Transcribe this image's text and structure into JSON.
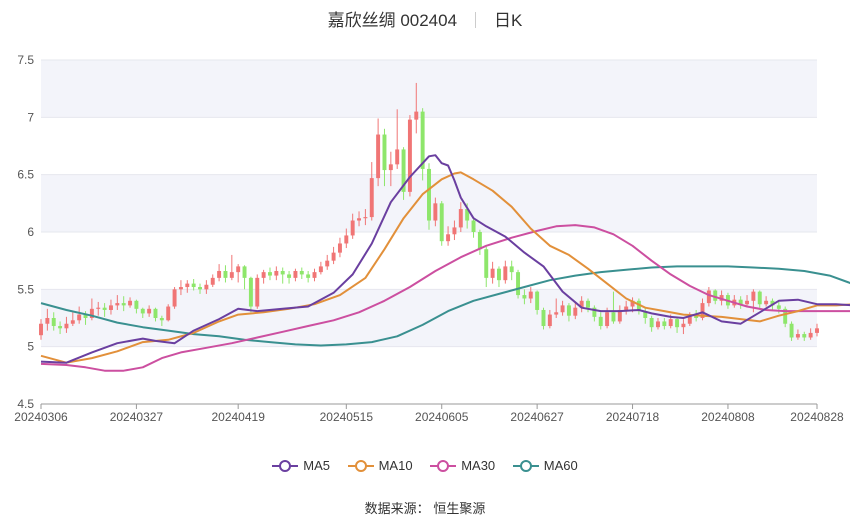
{
  "header": {
    "stock": "嘉欣丝绸 002404",
    "period": "日K"
  },
  "source_label": "数据来源：",
  "source_value": "恒生聚源",
  "colors": {
    "up": "#f07575",
    "down": "#8ee66b",
    "ma5": "#6a3fa0",
    "ma10": "#e2903a",
    "ma30": "#cc4fa0",
    "ma60": "#3a9090"
  },
  "chart_data": {
    "type": "candlestick",
    "title": "嘉欣丝绸 002404 日K",
    "ylim": [
      4.5,
      7.5
    ],
    "yticks": [
      "4.5",
      "5",
      "5.5",
      "6",
      "6.5",
      "7",
      "7.5"
    ],
    "x_start": "20240306",
    "x_end": "20240828",
    "xticks": [
      "20240306",
      "20240327",
      "20240419",
      "20240515",
      "20240605",
      "20240627",
      "20240718",
      "20240808",
      "20240828"
    ],
    "xtick_index": [
      0,
      15,
      31,
      48,
      63,
      78,
      93,
      108,
      122
    ],
    "n_days": 123,
    "legend": [
      "MA5",
      "MA10",
      "MA30",
      "MA60"
    ],
    "candles": [
      [
        5.1,
        5.2,
        5.24,
        5.06
      ],
      [
        5.2,
        5.25,
        5.33,
        5.14
      ],
      [
        5.25,
        5.18,
        5.3,
        5.14
      ],
      [
        5.18,
        5.16,
        5.22,
        5.11
      ],
      [
        5.16,
        5.2,
        5.26,
        5.12
      ],
      [
        5.2,
        5.23,
        5.3,
        5.18
      ],
      [
        5.23,
        5.28,
        5.35,
        5.2
      ],
      [
        5.28,
        5.25,
        5.31,
        5.19
      ],
      [
        5.25,
        5.33,
        5.42,
        5.23
      ],
      [
        5.33,
        5.34,
        5.39,
        5.27
      ],
      [
        5.34,
        5.32,
        5.38,
        5.26
      ],
      [
        5.32,
        5.36,
        5.41,
        5.28
      ],
      [
        5.36,
        5.38,
        5.45,
        5.32
      ],
      [
        5.38,
        5.36,
        5.44,
        5.31
      ],
      [
        5.36,
        5.4,
        5.43,
        5.34
      ],
      [
        5.4,
        5.33,
        5.41,
        5.29
      ],
      [
        5.33,
        5.29,
        5.34,
        5.25
      ],
      [
        5.29,
        5.33,
        5.36,
        5.26
      ],
      [
        5.33,
        5.25,
        5.34,
        5.22
      ],
      [
        5.25,
        5.23,
        5.27,
        5.18
      ],
      [
        5.23,
        5.35,
        5.37,
        5.22
      ],
      [
        5.35,
        5.5,
        5.52,
        5.33
      ],
      [
        5.5,
        5.52,
        5.58,
        5.45
      ],
      [
        5.52,
        5.55,
        5.58,
        5.47
      ],
      [
        5.55,
        5.52,
        5.59,
        5.49
      ],
      [
        5.52,
        5.5,
        5.55,
        5.46
      ],
      [
        5.5,
        5.54,
        5.58,
        5.46
      ],
      [
        5.54,
        5.6,
        5.63,
        5.52
      ],
      [
        5.6,
        5.66,
        5.72,
        5.57
      ],
      [
        5.66,
        5.6,
        5.71,
        5.56
      ],
      [
        5.6,
        5.65,
        5.8,
        5.58
      ],
      [
        5.65,
        5.7,
        5.72,
        5.56
      ],
      [
        5.7,
        5.6,
        5.71,
        5.5
      ],
      [
        5.6,
        5.35,
        5.61,
        5.3
      ],
      [
        5.35,
        5.6,
        5.63,
        5.33
      ],
      [
        5.6,
        5.65,
        5.67,
        5.55
      ],
      [
        5.65,
        5.62,
        5.69,
        5.58
      ],
      [
        5.62,
        5.66,
        5.7,
        5.58
      ],
      [
        5.66,
        5.63,
        5.69,
        5.55
      ],
      [
        5.63,
        5.6,
        5.66,
        5.55
      ],
      [
        5.6,
        5.66,
        5.68,
        5.57
      ],
      [
        5.66,
        5.63,
        5.69,
        5.59
      ],
      [
        5.63,
        5.6,
        5.66,
        5.56
      ],
      [
        5.6,
        5.65,
        5.68,
        5.57
      ],
      [
        5.65,
        5.7,
        5.74,
        5.63
      ],
      [
        5.7,
        5.75,
        5.8,
        5.67
      ],
      [
        5.75,
        5.82,
        5.87,
        5.72
      ],
      [
        5.82,
        5.9,
        5.95,
        5.78
      ],
      [
        5.9,
        5.97,
        6.03,
        5.86
      ],
      [
        5.97,
        6.1,
        6.16,
        5.94
      ],
      [
        6.1,
        6.12,
        6.18,
        6.05
      ],
      [
        6.12,
        6.13,
        6.2,
        6.06
      ],
      [
        6.13,
        6.47,
        6.61,
        6.1
      ],
      [
        6.47,
        6.85,
        6.99,
        6.4
      ],
      [
        6.85,
        6.54,
        6.9,
        6.4
      ],
      [
        6.54,
        6.59,
        6.7,
        6.4
      ],
      [
        6.59,
        6.72,
        7.07,
        6.55
      ],
      [
        6.72,
        6.35,
        6.74,
        6.28
      ],
      [
        6.35,
        6.98,
        7.02,
        6.31
      ],
      [
        6.98,
        7.05,
        7.3,
        6.86
      ],
      [
        7.05,
        6.55,
        7.08,
        6.45
      ],
      [
        6.55,
        6.1,
        6.6,
        6.02
      ],
      [
        6.1,
        6.25,
        6.3,
        6.05
      ],
      [
        6.25,
        5.92,
        6.27,
        5.88
      ],
      [
        5.92,
        5.98,
        6.05,
        5.88
      ],
      [
        5.98,
        6.04,
        6.1,
        5.93
      ],
      [
        6.04,
        6.2,
        6.26,
        6.0
      ],
      [
        6.2,
        6.1,
        6.25,
        6.03
      ],
      [
        6.1,
        6.0,
        6.12,
        5.95
      ],
      [
        6.0,
        5.85,
        6.02,
        5.8
      ],
      [
        5.85,
        5.6,
        5.87,
        5.52
      ],
      [
        5.6,
        5.68,
        5.74,
        5.55
      ],
      [
        5.68,
        5.58,
        5.7,
        5.52
      ],
      [
        5.58,
        5.7,
        5.75,
        5.55
      ],
      [
        5.7,
        5.65,
        5.75,
        5.58
      ],
      [
        5.65,
        5.45,
        5.67,
        5.42
      ],
      [
        5.45,
        5.42,
        5.5,
        5.37
      ],
      [
        5.42,
        5.48,
        5.52,
        5.38
      ],
      [
        5.48,
        5.32,
        5.49,
        5.28
      ],
      [
        5.32,
        5.18,
        5.34,
        5.15
      ],
      [
        5.18,
        5.28,
        5.32,
        5.16
      ],
      [
        5.28,
        5.3,
        5.42,
        5.25
      ],
      [
        5.3,
        5.36,
        5.4,
        5.27
      ],
      [
        5.36,
        5.27,
        5.38,
        5.22
      ],
      [
        5.27,
        5.34,
        5.38,
        5.24
      ],
      [
        5.34,
        5.4,
        5.44,
        5.3
      ],
      [
        5.4,
        5.34,
        5.42,
        5.3
      ],
      [
        5.34,
        5.26,
        5.36,
        5.22
      ],
      [
        5.26,
        5.18,
        5.3,
        5.15
      ],
      [
        5.18,
        5.3,
        5.34,
        5.16
      ],
      [
        5.3,
        5.22,
        5.48,
        5.2
      ],
      [
        5.22,
        5.32,
        5.36,
        5.2
      ],
      [
        5.32,
        5.35,
        5.4,
        5.28
      ],
      [
        5.35,
        5.4,
        5.43,
        5.3
      ],
      [
        5.4,
        5.31,
        5.42,
        5.28
      ],
      [
        5.31,
        5.25,
        5.34,
        5.2
      ],
      [
        5.25,
        5.17,
        5.27,
        5.13
      ],
      [
        5.17,
        5.22,
        5.25,
        5.15
      ],
      [
        5.22,
        5.18,
        5.25,
        5.15
      ],
      [
        5.18,
        5.24,
        5.28,
        5.16
      ],
      [
        5.24,
        5.17,
        5.26,
        5.12
      ],
      [
        5.17,
        5.2,
        5.24,
        5.11
      ],
      [
        5.2,
        5.27,
        5.3,
        5.18
      ],
      [
        5.27,
        5.25,
        5.32,
        5.22
      ],
      [
        5.25,
        5.38,
        5.42,
        5.23
      ],
      [
        5.38,
        5.49,
        5.52,
        5.35
      ],
      [
        5.49,
        5.4,
        5.5,
        5.37
      ],
      [
        5.4,
        5.45,
        5.49,
        5.36
      ],
      [
        5.45,
        5.36,
        5.47,
        5.33
      ],
      [
        5.36,
        5.41,
        5.45,
        5.34
      ],
      [
        5.41,
        5.37,
        5.44,
        5.33
      ],
      [
        5.37,
        5.4,
        5.45,
        5.35
      ],
      [
        5.4,
        5.48,
        5.5,
        5.3
      ],
      [
        5.48,
        5.37,
        5.49,
        5.34
      ],
      [
        5.37,
        5.4,
        5.44,
        5.35
      ],
      [
        5.4,
        5.36,
        5.42,
        5.32
      ],
      [
        5.36,
        5.33,
        5.39,
        5.29
      ],
      [
        5.33,
        5.2,
        5.35,
        5.17
      ],
      [
        5.2,
        5.08,
        5.22,
        5.05
      ],
      [
        5.08,
        5.11,
        5.15,
        5.06
      ],
      [
        5.11,
        5.08,
        5.13,
        5.05
      ],
      [
        5.08,
        5.12,
        5.16,
        5.06
      ],
      [
        5.12,
        5.16,
        5.2,
        5.09
      ]
    ],
    "ma5": [
      [
        0,
        4.87
      ],
      [
        4,
        4.86
      ],
      [
        8,
        4.95
      ],
      [
        12,
        5.03
      ],
      [
        16,
        5.07
      ],
      [
        18,
        5.05
      ],
      [
        21,
        5.03
      ],
      [
        24,
        5.14
      ],
      [
        28,
        5.24
      ],
      [
        31,
        5.33
      ],
      [
        34,
        5.31
      ],
      [
        38,
        5.33
      ],
      [
        42,
        5.35
      ],
      [
        46,
        5.47
      ],
      [
        49,
        5.63
      ],
      [
        52,
        5.9
      ],
      [
        55,
        6.26
      ],
      [
        58,
        6.48
      ],
      [
        61,
        6.66
      ],
      [
        62,
        6.67
      ],
      [
        63,
        6.6
      ],
      [
        64,
        6.58
      ],
      [
        65,
        6.45
      ],
      [
        66,
        6.3
      ],
      [
        68,
        6.12
      ],
      [
        70,
        6.05
      ],
      [
        73,
        5.96
      ],
      [
        76,
        5.82
      ],
      [
        79,
        5.7
      ],
      [
        82,
        5.48
      ],
      [
        85,
        5.34
      ],
      [
        88,
        5.31
      ],
      [
        91,
        5.31
      ],
      [
        94,
        5.32
      ],
      [
        96,
        5.29
      ],
      [
        99,
        5.26
      ],
      [
        101,
        5.25
      ],
      [
        104,
        5.3
      ],
      [
        107,
        5.22
      ],
      [
        110,
        5.2
      ],
      [
        113,
        5.3
      ],
      [
        116,
        5.4
      ],
      [
        119,
        5.41
      ],
      [
        122,
        5.37
      ],
      [
        125,
        5.37
      ],
      [
        128,
        5.36
      ],
      [
        130,
        5.33
      ],
      [
        132,
        5.25
      ],
      [
        134,
        5.15
      ],
      [
        136,
        5.1
      ],
      [
        138,
        5.1
      ]
    ],
    "ma10": [
      [
        0,
        4.92
      ],
      [
        4,
        4.86
      ],
      [
        8,
        4.9
      ],
      [
        12,
        4.96
      ],
      [
        16,
        5.04
      ],
      [
        20,
        5.06
      ],
      [
        24,
        5.12
      ],
      [
        28,
        5.22
      ],
      [
        31,
        5.28
      ],
      [
        35,
        5.3
      ],
      [
        39,
        5.33
      ],
      [
        43,
        5.37
      ],
      [
        47,
        5.45
      ],
      [
        51,
        5.6
      ],
      [
        54,
        5.85
      ],
      [
        57,
        6.12
      ],
      [
        60,
        6.33
      ],
      [
        63,
        6.46
      ],
      [
        65,
        6.51
      ],
      [
        66,
        6.52
      ],
      [
        68,
        6.46
      ],
      [
        71,
        6.36
      ],
      [
        74,
        6.22
      ],
      [
        77,
        6.03
      ],
      [
        80,
        5.88
      ],
      [
        83,
        5.8
      ],
      [
        86,
        5.68
      ],
      [
        89,
        5.55
      ],
      [
        92,
        5.42
      ],
      [
        95,
        5.34
      ],
      [
        98,
        5.31
      ],
      [
        101,
        5.28
      ],
      [
        104,
        5.27
      ],
      [
        107,
        5.26
      ],
      [
        110,
        5.24
      ],
      [
        113,
        5.22
      ],
      [
        116,
        5.27
      ],
      [
        119,
        5.31
      ],
      [
        122,
        5.36
      ],
      [
        125,
        5.36
      ],
      [
        128,
        5.37
      ],
      [
        131,
        5.37
      ],
      [
        134,
        5.33
      ],
      [
        137,
        5.27
      ],
      [
        140,
        5.22
      ]
    ],
    "ma30": [
      [
        0,
        4.85
      ],
      [
        4,
        4.84
      ],
      [
        7,
        4.82
      ],
      [
        10,
        4.79
      ],
      [
        13,
        4.79
      ],
      [
        16,
        4.82
      ],
      [
        19,
        4.9
      ],
      [
        22,
        4.95
      ],
      [
        26,
        4.99
      ],
      [
        30,
        5.03
      ],
      [
        34,
        5.08
      ],
      [
        38,
        5.13
      ],
      [
        42,
        5.18
      ],
      [
        46,
        5.23
      ],
      [
        50,
        5.3
      ],
      [
        54,
        5.4
      ],
      [
        58,
        5.52
      ],
      [
        62,
        5.66
      ],
      [
        66,
        5.78
      ],
      [
        70,
        5.88
      ],
      [
        74,
        5.95
      ],
      [
        78,
        6.01
      ],
      [
        81,
        6.05
      ],
      [
        84,
        6.06
      ],
      [
        87,
        6.04
      ],
      [
        90,
        5.98
      ],
      [
        93,
        5.88
      ],
      [
        96,
        5.75
      ],
      [
        99,
        5.63
      ],
      [
        102,
        5.53
      ],
      [
        105,
        5.45
      ],
      [
        108,
        5.4
      ],
      [
        111,
        5.35
      ],
      [
        114,
        5.32
      ],
      [
        117,
        5.31
      ],
      [
        120,
        5.31
      ],
      [
        124,
        5.31
      ],
      [
        128,
        5.31
      ],
      [
        132,
        5.31
      ],
      [
        136,
        5.3
      ],
      [
        138,
        5.29
      ]
    ],
    "ma60": [
      [
        0,
        5.38
      ],
      [
        4,
        5.32
      ],
      [
        8,
        5.27
      ],
      [
        12,
        5.21
      ],
      [
        16,
        5.17
      ],
      [
        20,
        5.14
      ],
      [
        24,
        5.11
      ],
      [
        28,
        5.09
      ],
      [
        32,
        5.06
      ],
      [
        36,
        5.04
      ],
      [
        40,
        5.02
      ],
      [
        44,
        5.01
      ],
      [
        48,
        5.02
      ],
      [
        52,
        5.04
      ],
      [
        56,
        5.09
      ],
      [
        60,
        5.19
      ],
      [
        64,
        5.31
      ],
      [
        68,
        5.4
      ],
      [
        72,
        5.46
      ],
      [
        76,
        5.52
      ],
      [
        80,
        5.58
      ],
      [
        84,
        5.62
      ],
      [
        88,
        5.65
      ],
      [
        92,
        5.67
      ],
      [
        96,
        5.69
      ],
      [
        100,
        5.7
      ],
      [
        104,
        5.7
      ],
      [
        108,
        5.7
      ],
      [
        112,
        5.69
      ],
      [
        116,
        5.68
      ],
      [
        120,
        5.66
      ],
      [
        124,
        5.62
      ],
      [
        127,
        5.56
      ],
      [
        130,
        5.49
      ],
      [
        133,
        5.42
      ],
      [
        136,
        5.37
      ],
      [
        138,
        5.33
      ]
    ]
  }
}
